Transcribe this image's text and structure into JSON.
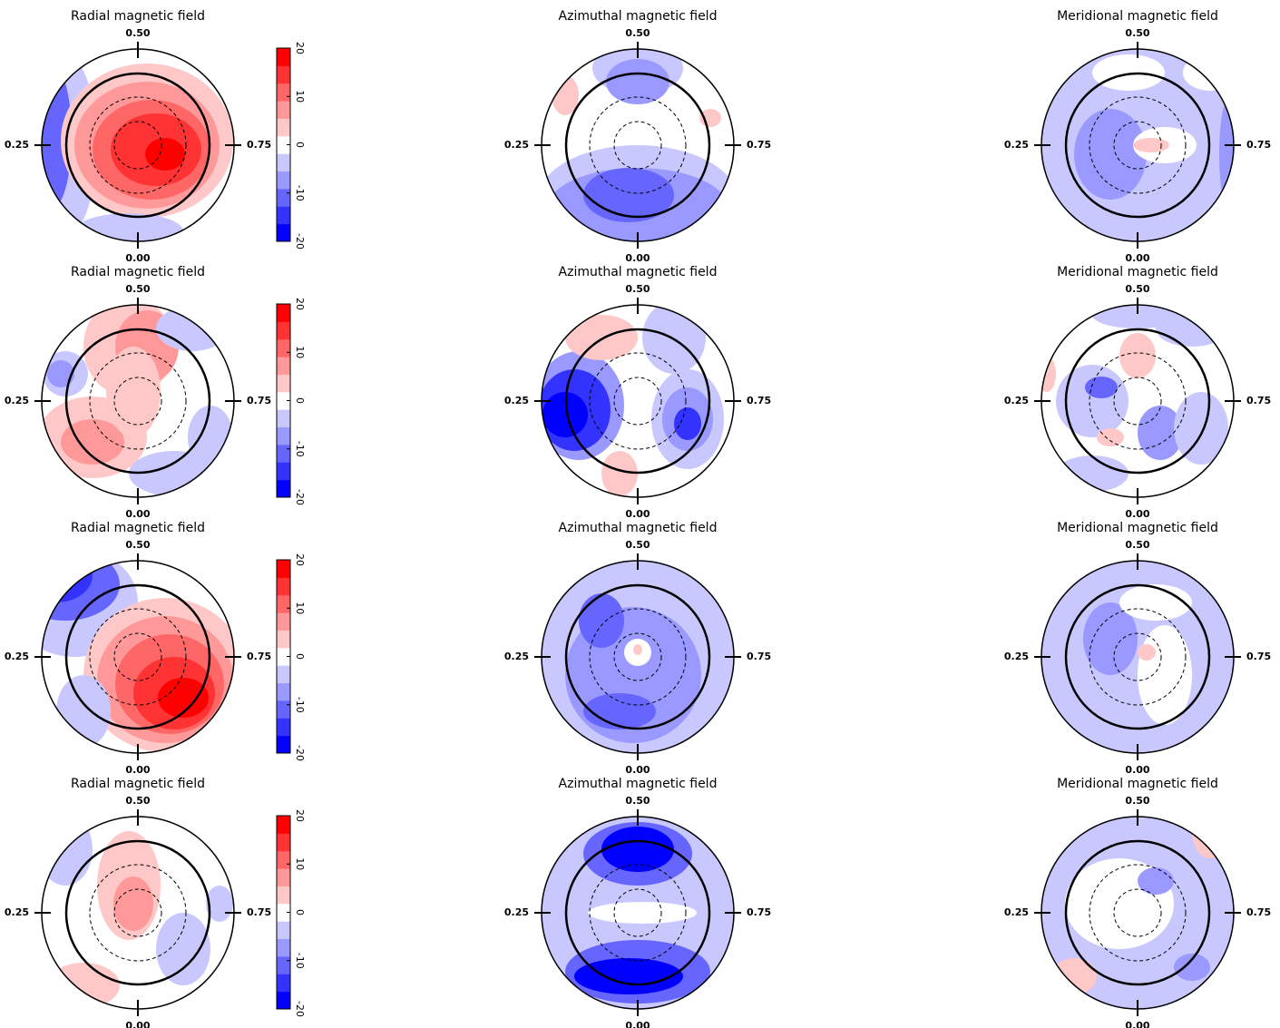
{
  "chart_data": [
    {
      "type": "polar-map",
      "title": "Radial magnetic field",
      "phase_labels": {
        "top": "0.50",
        "left": "0.25",
        "right": "0.75",
        "bottom": "0.00"
      },
      "colors": [
        "#0000ff",
        "#3333ff",
        "#6666ff",
        "#9999ff",
        "#c8c8ff",
        "#ffffff",
        "#ffc8c8",
        "#ff9999",
        "#ff6666",
        "#ff3333",
        "#ff0000"
      ],
      "colorbar": {
        "ylim": [
          -20,
          20
        ],
        "yticks": [
          -20,
          -10,
          0,
          10,
          20
        ]
      }
    },
    {
      "type": "polar-map",
      "title": "Azimuthal magnetic field",
      "phase_labels": {
        "top": "0.50",
        "left": "0.25",
        "right": "0.75",
        "bottom": "0.00"
      },
      "colors": [
        "#0000ff",
        "#3333ff",
        "#6666ff",
        "#9999ff",
        "#c8c8ff",
        "#ffffff",
        "#ffc8c8",
        "#ff9999",
        "#ff6666",
        "#ff3333",
        "#ff0000"
      ]
    },
    {
      "type": "polar-map",
      "title": "Meridional magnetic field",
      "phase_labels": {
        "top": "0.50",
        "left": "0.25",
        "right": "0.75",
        "bottom": "0.00"
      },
      "colors": [
        "#0000ff",
        "#3333ff",
        "#6666ff",
        "#9999ff",
        "#c8c8ff",
        "#ffffff",
        "#ffc8c8",
        "#ff9999",
        "#ff6666",
        "#ff3333",
        "#ff0000"
      ]
    },
    {
      "type": "polar-map",
      "title": "Radial magnetic field",
      "phase_labels": {
        "top": "0.50",
        "left": "0.25",
        "right": "0.75",
        "bottom": "0.00"
      },
      "colors": [
        "#0000ff",
        "#3333ff",
        "#6666ff",
        "#9999ff",
        "#c8c8ff",
        "#ffffff",
        "#ffc8c8",
        "#ff9999",
        "#ff6666",
        "#ff3333",
        "#ff0000"
      ],
      "colorbar": {
        "ylim": [
          -20,
          20
        ],
        "yticks": [
          -20,
          -10,
          0,
          10,
          20
        ]
      }
    },
    {
      "type": "polar-map",
      "title": "Azimuthal magnetic field",
      "phase_labels": {
        "top": "0.50",
        "left": "0.25",
        "right": "0.75",
        "bottom": "0.00"
      },
      "colors": [
        "#0000ff",
        "#3333ff",
        "#6666ff",
        "#9999ff",
        "#c8c8ff",
        "#ffffff",
        "#ffc8c8",
        "#ff9999",
        "#ff6666",
        "#ff3333",
        "#ff0000"
      ]
    },
    {
      "type": "polar-map",
      "title": "Meridional magnetic field",
      "phase_labels": {
        "top": "0.50",
        "left": "0.25",
        "right": "0.75",
        "bottom": "0.00"
      },
      "colors": [
        "#0000ff",
        "#3333ff",
        "#6666ff",
        "#9999ff",
        "#c8c8ff",
        "#ffffff",
        "#ffc8c8",
        "#ff9999",
        "#ff6666",
        "#ff3333",
        "#ff0000"
      ]
    },
    {
      "type": "polar-map",
      "title": "Radial magnetic field",
      "phase_labels": {
        "top": "0.50",
        "left": "0.25",
        "right": "0.75",
        "bottom": "0.00"
      },
      "colors": [
        "#0000ff",
        "#3333ff",
        "#6666ff",
        "#9999ff",
        "#c8c8ff",
        "#ffffff",
        "#ffc8c8",
        "#ff9999",
        "#ff6666",
        "#ff3333",
        "#ff0000"
      ],
      "colorbar": {
        "ylim": [
          -20,
          20
        ],
        "yticks": [
          -20,
          -10,
          0,
          10,
          20
        ]
      }
    },
    {
      "type": "polar-map",
      "title": "Azimuthal magnetic field",
      "phase_labels": {
        "top": "0.50",
        "left": "0.25",
        "right": "0.75",
        "bottom": "0.00"
      },
      "colors": [
        "#0000ff",
        "#3333ff",
        "#6666ff",
        "#9999ff",
        "#c8c8ff",
        "#ffffff",
        "#ffc8c8",
        "#ff9999",
        "#ff6666",
        "#ff3333",
        "#ff0000"
      ]
    },
    {
      "type": "polar-map",
      "title": "Meridional magnetic field",
      "phase_labels": {
        "top": "0.50",
        "left": "0.25",
        "right": "0.75",
        "bottom": "0.00"
      },
      "colors": [
        "#0000ff",
        "#3333ff",
        "#6666ff",
        "#9999ff",
        "#c8c8ff",
        "#ffffff",
        "#ffc8c8",
        "#ff9999",
        "#ff6666",
        "#ff3333",
        "#ff0000"
      ]
    },
    {
      "type": "polar-map",
      "title": "Radial magnetic field",
      "phase_labels": {
        "top": "0.50",
        "left": "0.25",
        "right": "0.75",
        "bottom": "0.00"
      },
      "colors": [
        "#0000ff",
        "#3333ff",
        "#6666ff",
        "#9999ff",
        "#c8c8ff",
        "#ffffff",
        "#ffc8c8",
        "#ff9999",
        "#ff6666",
        "#ff3333",
        "#ff0000"
      ],
      "colorbar": {
        "ylim": [
          -20,
          20
        ],
        "yticks": [
          -20,
          -10,
          0,
          10,
          20
        ]
      }
    },
    {
      "type": "polar-map",
      "title": "Azimuthal magnetic field",
      "phase_labels": {
        "top": "0.50",
        "left": "0.25",
        "right": "0.75",
        "bottom": "0.00"
      },
      "colors": [
        "#0000ff",
        "#3333ff",
        "#6666ff",
        "#9999ff",
        "#c8c8ff",
        "#ffffff",
        "#ffc8c8",
        "#ff9999",
        "#ff6666",
        "#ff3333",
        "#ff0000"
      ]
    },
    {
      "type": "polar-map",
      "title": "Meridional magnetic field",
      "phase_labels": {
        "top": "0.50",
        "left": "0.25",
        "right": "0.75",
        "bottom": "0.00"
      },
      "colors": [
        "#0000ff",
        "#3333ff",
        "#6666ff",
        "#9999ff",
        "#c8c8ff",
        "#ffffff",
        "#ffc8c8",
        "#ff9999",
        "#ff6666",
        "#ff3333",
        "#ff0000"
      ]
    }
  ]
}
